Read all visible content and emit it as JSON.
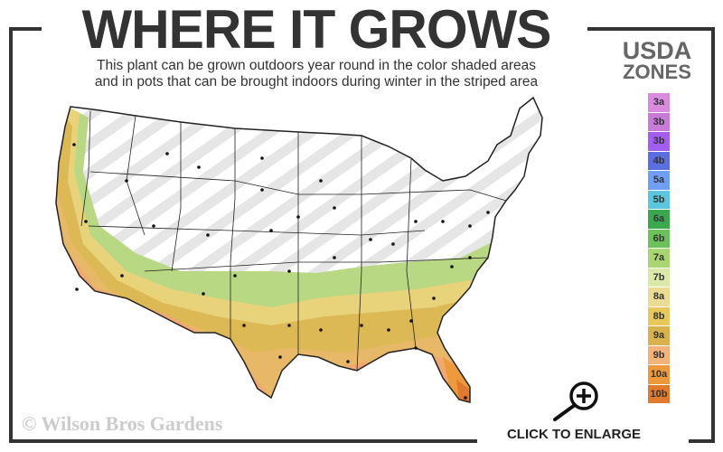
{
  "header": {
    "title": "WHERE IT GROWS",
    "subtitle_line1": "This plant can be grown outdoors year round in the color shaded areas",
    "subtitle_line2": "and in pots that can be brought indoors during winter in the striped area"
  },
  "legend": {
    "title_line1": "USDA",
    "title_line2": "ZONES",
    "zones": [
      {
        "label": "3a",
        "color": "#d98be0"
      },
      {
        "label": "3b",
        "color": "#c77ad6"
      },
      {
        "label": "3b",
        "color": "#a35df0"
      },
      {
        "label": "4b",
        "color": "#5b6fe0"
      },
      {
        "label": "5a",
        "color": "#6f9ef5"
      },
      {
        "label": "5b",
        "color": "#5bc6de"
      },
      {
        "label": "6a",
        "color": "#3aa84f"
      },
      {
        "label": "6b",
        "color": "#6cc25a"
      },
      {
        "label": "7a",
        "color": "#a9d672"
      },
      {
        "label": "7b",
        "color": "#dbe9a8"
      },
      {
        "label": "8a",
        "color": "#ecdb94"
      },
      {
        "label": "8b",
        "color": "#e8c85a"
      },
      {
        "label": "9a",
        "color": "#d9b24e"
      },
      {
        "label": "9b",
        "color": "#f2b27a"
      },
      {
        "label": "10a",
        "color": "#ee9a3c"
      },
      {
        "label": "10b",
        "color": "#e07a2e"
      }
    ]
  },
  "map": {
    "shaded_zones": [
      "7b",
      "8a",
      "8b",
      "9a",
      "9b",
      "10a",
      "10b"
    ],
    "striped_area": "pots indoors during winter"
  },
  "footer": {
    "copyright": "© Wilson Bros Gardens",
    "enlarge_label": "CLICK TO ENLARGE",
    "enlarge_icon": "zoom-in-magnifier-icon"
  }
}
